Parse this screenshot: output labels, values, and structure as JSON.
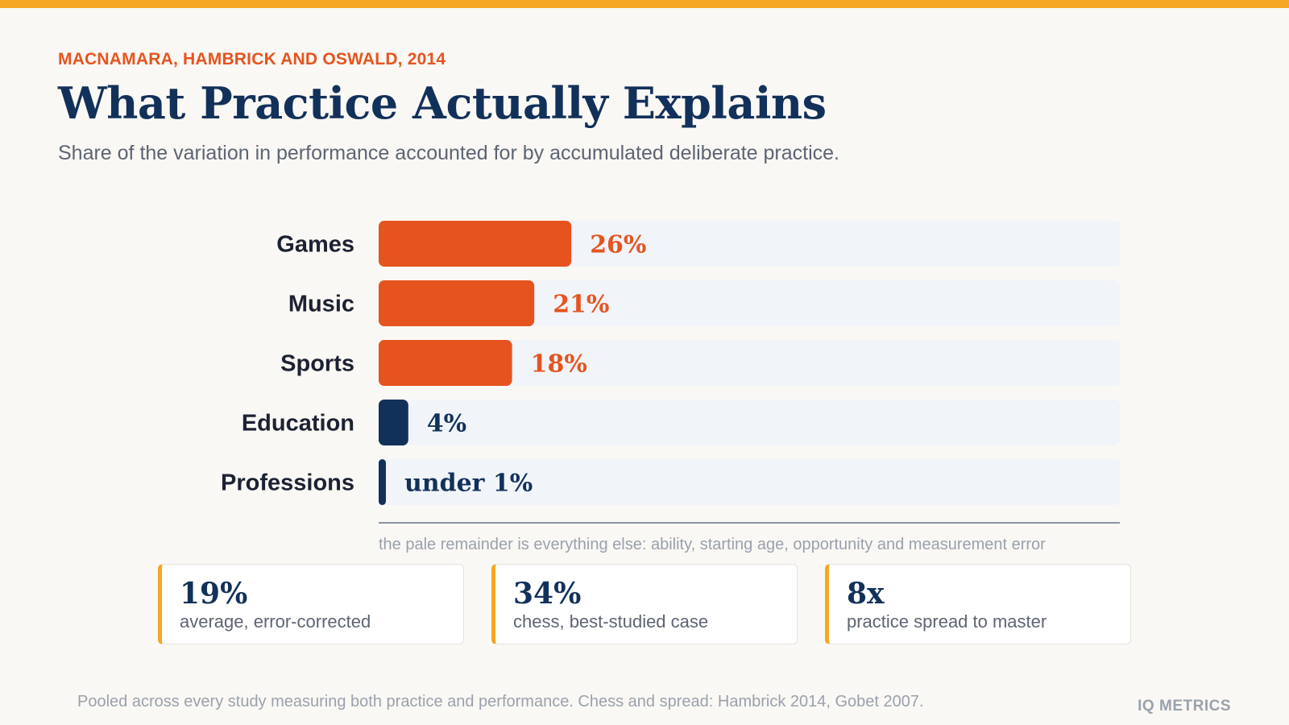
{
  "header": {
    "eyebrow": "MACNAMARA, HAMBRICK AND OSWALD, 2014",
    "title": "What Practice Actually Explains",
    "subtitle": "Share of the variation in performance accounted for by accumulated deliberate practice."
  },
  "chart_data": {
    "type": "bar",
    "orientation": "horizontal",
    "categories": [
      "Games",
      "Music",
      "Sports",
      "Education",
      "Professions"
    ],
    "values": [
      26,
      21,
      18,
      4,
      1
    ],
    "value_labels": [
      "26%",
      "21%",
      "18%",
      "4%",
      "under 1%"
    ],
    "xlim": [
      0,
      100
    ],
    "colors": {
      "highlight": "#e5541f",
      "dark": "#12315a",
      "track": "#f1f4f9",
      "axis": "#8a94a6"
    },
    "grid": false,
    "note": "the pale remainder is everything else: ability, starting age, opportunity and measurement error"
  },
  "stats": [
    {
      "value": "19%",
      "label": "average, error-corrected"
    },
    {
      "value": "34%",
      "label": "chess, best-studied case"
    },
    {
      "value": "8x",
      "label": "practice spread to master"
    }
  ],
  "footer": {
    "footnote": "Pooled across every study measuring both practice and performance. Chess and spread: Hambrick 2014, Gobet 2007.",
    "brand": "IQ METRICS"
  }
}
